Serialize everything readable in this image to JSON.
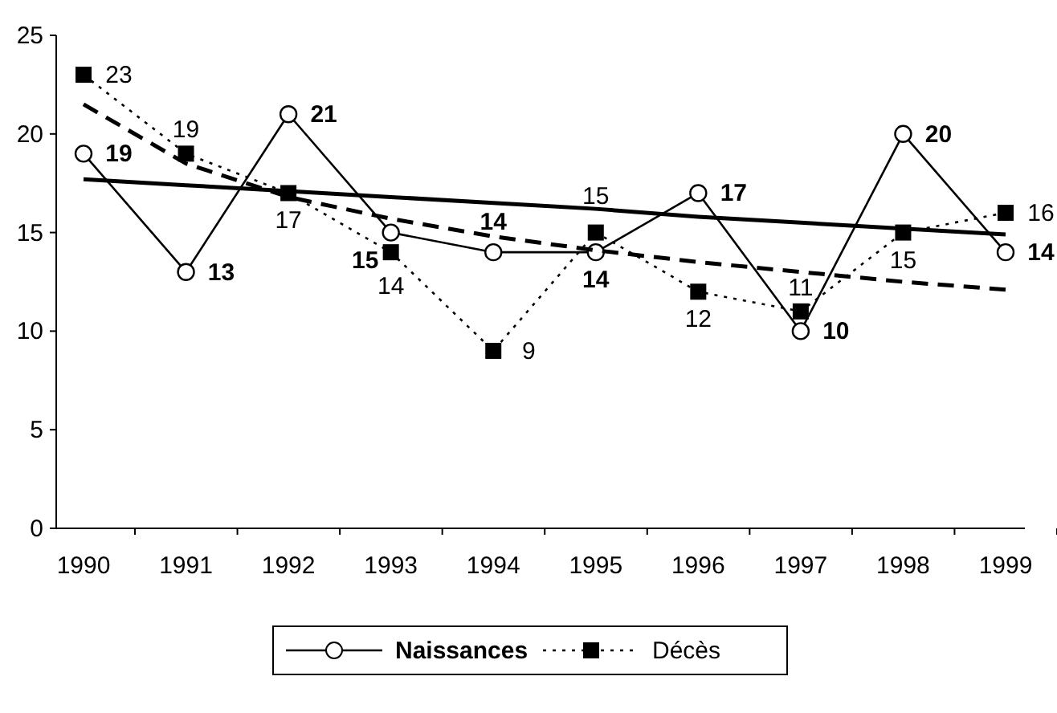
{
  "chart_data": {
    "type": "line",
    "categories": [
      "1990",
      "1991",
      "1992",
      "1993",
      "1994",
      "1995",
      "1996",
      "1997",
      "1998",
      "1999"
    ],
    "ylim": [
      0,
      25
    ],
    "yticks": [
      0,
      5,
      10,
      15,
      20,
      25
    ],
    "grid": false,
    "legend": "bottom",
    "series": [
      {
        "name": "Naissances",
        "color": "#000000",
        "marker": "circle",
        "line_style": "solid",
        "values": [
          19,
          13,
          21,
          15,
          14,
          14,
          17,
          10,
          20,
          14
        ],
        "value_labels": [
          "19",
          "13",
          "21",
          "15",
          "14",
          "14",
          "17",
          "10",
          "20",
          "14"
        ]
      },
      {
        "name": "Décès",
        "color": "#000000",
        "marker": "square",
        "line_style": "dotted",
        "values": [
          23,
          19,
          17,
          14,
          9,
          15,
          12,
          11,
          15,
          16
        ],
        "value_labels": [
          "23",
          "19",
          "17",
          "14",
          "9",
          "15",
          "12",
          "11",
          "15",
          "16"
        ]
      },
      {
        "color": "#000000",
        "marker": "none",
        "line_style": "solid",
        "values": [
          17.7,
          17.4,
          17.1,
          16.8,
          16.5,
          16.2,
          15.8,
          15.5,
          15.2,
          14.9
        ]
      },
      {
        "color": "#000000",
        "marker": "none",
        "line_style": "dashed",
        "values": [
          21.5,
          18.5,
          16.8,
          15.7,
          14.8,
          14.1,
          13.5,
          13,
          12.5,
          12.1
        ]
      }
    ]
  }
}
